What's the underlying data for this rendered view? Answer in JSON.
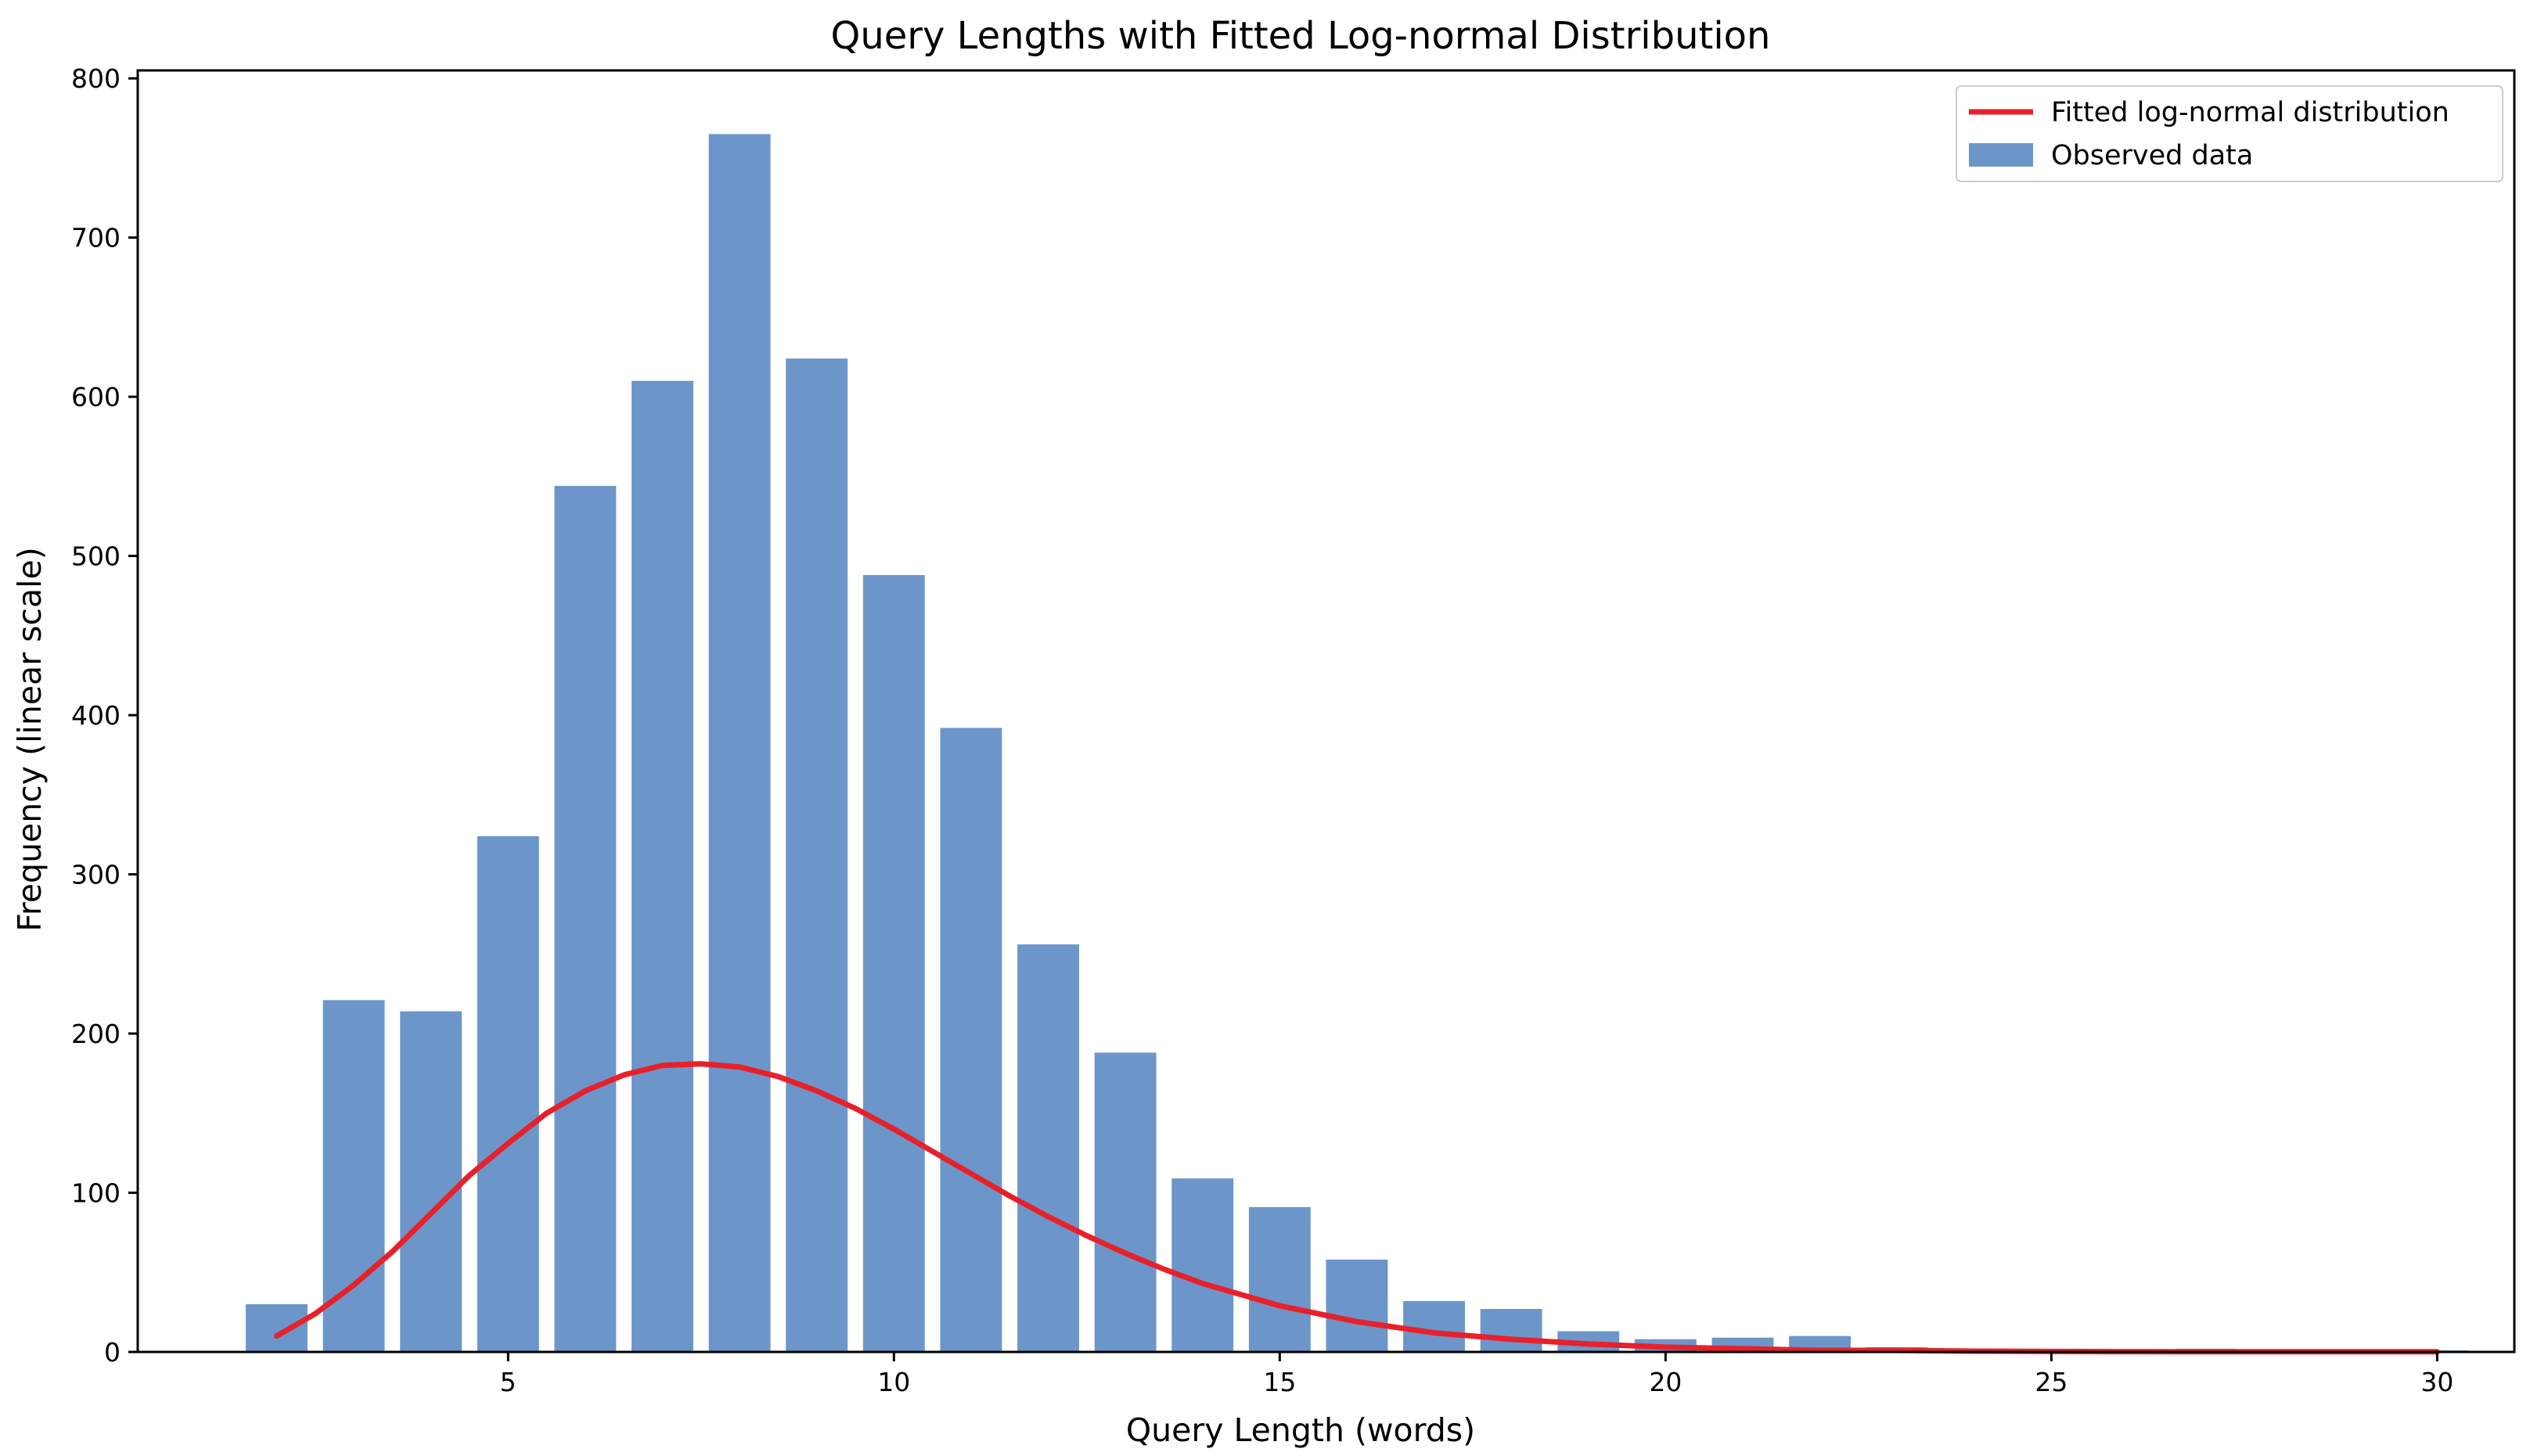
{
  "chart_data": {
    "type": "bar",
    "title": "Query Lengths with Fitted Log-normal Distribution",
    "xlabel": "Query Length (words)",
    "ylabel": "Frequency (linear scale)",
    "xlim": [
      0.2,
      31.0
    ],
    "ylim": [
      0,
      805
    ],
    "xticks": [
      5,
      10,
      15,
      20,
      25,
      30
    ],
    "yticks": [
      0,
      100,
      200,
      300,
      400,
      500,
      600,
      700,
      800
    ],
    "grid": false,
    "legend_position": "top-right",
    "bar_width": 0.8,
    "series": [
      {
        "name": "Observed data",
        "kind": "bar",
        "color": "#6c96c9",
        "x": [
          2,
          3,
          4,
          5,
          6,
          7,
          8,
          9,
          10,
          11,
          12,
          13,
          14,
          15,
          16,
          17,
          18,
          19,
          20,
          21,
          22,
          23,
          24,
          25,
          26,
          27,
          28,
          29,
          30
        ],
        "values": [
          30,
          221,
          214,
          324,
          544,
          610,
          765,
          624,
          488,
          392,
          256,
          188,
          109,
          91,
          58,
          32,
          27,
          13,
          8,
          9,
          10,
          3,
          2,
          1,
          1,
          2,
          1,
          1,
          1
        ]
      },
      {
        "name": "Fitted log-normal distribution",
        "kind": "line",
        "color": "#e8202a",
        "x": [
          2,
          2.5,
          3,
          3.5,
          4,
          4.5,
          5,
          5.5,
          6,
          6.5,
          7,
          7.5,
          8,
          8.5,
          9,
          9.5,
          10,
          10.5,
          11,
          11.5,
          12,
          12.5,
          13,
          13.5,
          14,
          14.5,
          15,
          16,
          17,
          18,
          19,
          20,
          21,
          22,
          23,
          24,
          25,
          26,
          27,
          28,
          29,
          30
        ],
        "values": [
          10,
          24,
          42,
          63,
          87,
          111,
          131,
          150,
          164,
          174,
          180,
          181,
          179,
          173,
          164,
          153,
          140,
          126,
          112,
          98,
          85,
          73,
          62,
          52,
          43,
          36,
          29,
          19,
          12,
          8,
          5,
          3,
          2,
          1,
          1,
          0.5,
          0.3,
          0.2,
          0.1,
          0.1,
          0.1,
          0.1
        ]
      }
    ]
  }
}
